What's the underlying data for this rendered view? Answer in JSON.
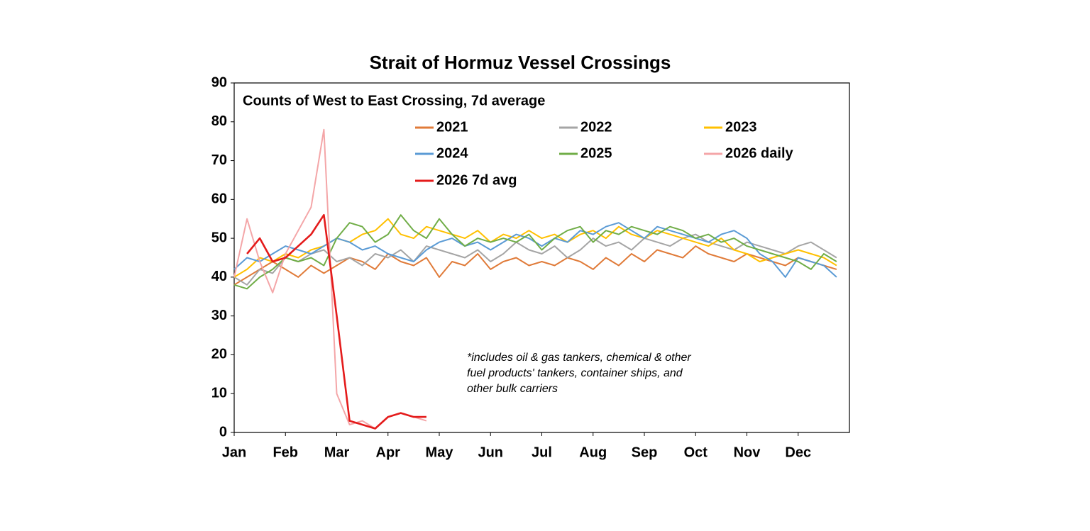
{
  "chart_data": {
    "type": "line",
    "title": "Strait of Hormuz Vessel Crossings",
    "subtitle": "Counts of West to East Crossing, 7d average",
    "annotation": [
      "*includes oil & gas tankers, chemical & other",
      "fuel products' tankers, container ships, and",
      "other bulk carriers"
    ],
    "categories": [
      "Jan",
      null,
      null,
      null,
      "Feb",
      null,
      null,
      null,
      "Mar",
      null,
      null,
      null,
      "Apr",
      null,
      null,
      null,
      "May",
      null,
      null,
      null,
      "Jun",
      null,
      null,
      null,
      "Jul",
      null,
      null,
      null,
      "Aug",
      null,
      null,
      null,
      "Sep",
      null,
      null,
      null,
      "Oct",
      null,
      null,
      null,
      "Nov",
      null,
      null,
      null,
      "Dec",
      null,
      null,
      null
    ],
    "ylim": [
      0,
      90
    ],
    "yticks": [
      0,
      10,
      20,
      30,
      40,
      50,
      60,
      70,
      80,
      90
    ],
    "series": [
      {
        "name": "2021",
        "color": "#e07b39",
        "values": [
          38,
          40,
          42,
          44,
          42,
          40,
          43,
          41,
          43,
          45,
          44,
          42,
          46,
          44,
          43,
          45,
          40,
          44,
          43,
          46,
          42,
          44,
          45,
          43,
          44,
          43,
          45,
          44,
          42,
          45,
          43,
          46,
          44,
          47,
          46,
          45,
          48,
          46,
          45,
          44,
          46,
          45,
          44,
          43,
          45,
          44,
          43,
          42
        ]
      },
      {
        "name": "2022",
        "color": "#a5a5a5",
        "values": [
          40,
          38,
          42,
          41,
          45,
          44,
          46,
          47,
          44,
          45,
          43,
          46,
          45,
          47,
          44,
          48,
          47,
          46,
          45,
          47,
          44,
          46,
          49,
          47,
          46,
          48,
          45,
          47,
          50,
          48,
          49,
          47,
          50,
          49,
          48,
          50,
          51,
          49,
          48,
          47,
          49,
          48,
          47,
          46,
          48,
          49,
          47,
          45
        ]
      },
      {
        "name": "2023",
        "color": "#ffc000",
        "values": [
          40,
          42,
          45,
          44,
          46,
          45,
          47,
          48,
          50,
          49,
          51,
          52,
          55,
          51,
          50,
          53,
          52,
          51,
          50,
          52,
          49,
          51,
          50,
          52,
          50,
          51,
          49,
          51,
          52,
          50,
          53,
          51,
          50,
          52,
          51,
          50,
          49,
          48,
          50,
          47,
          46,
          44,
          45,
          46,
          47,
          46,
          45,
          43
        ]
      },
      {
        "name": "2024",
        "color": "#5b9bd5",
        "values": [
          42,
          45,
          44,
          46,
          48,
          47,
          46,
          48,
          50,
          49,
          47,
          48,
          46,
          45,
          44,
          47,
          49,
          50,
          48,
          49,
          47,
          49,
          51,
          50,
          48,
          50,
          49,
          52,
          51,
          53,
          54,
          52,
          50,
          53,
          52,
          51,
          50,
          49,
          51,
          52,
          50,
          46,
          44,
          40,
          45,
          44,
          43,
          40
        ]
      },
      {
        "name": "2025",
        "color": "#70ad47",
        "values": [
          38,
          37,
          40,
          42,
          45,
          44,
          45,
          43,
          50,
          54,
          53,
          49,
          51,
          56,
          52,
          50,
          55,
          51,
          48,
          50,
          49,
          50,
          49,
          51,
          47,
          50,
          52,
          53,
          49,
          52,
          51,
          53,
          52,
          51,
          53,
          52,
          50,
          51,
          49,
          50,
          48,
          47,
          46,
          45,
          44,
          42,
          46,
          44
        ]
      },
      {
        "name": "2026 daily",
        "color": "#f4a6a8",
        "values": [
          40,
          55,
          44,
          36,
          46,
          52,
          58,
          78,
          10,
          2,
          3,
          1,
          4,
          5,
          4,
          3,
          null,
          null,
          null,
          null,
          null,
          null,
          null,
          null,
          null,
          null,
          null,
          null,
          null,
          null,
          null,
          null,
          null,
          null,
          null,
          null,
          null,
          null,
          null,
          null,
          null,
          null,
          null,
          null,
          null,
          null,
          null,
          null
        ]
      },
      {
        "name": "2026 7d avg",
        "color": "#e41b1b",
        "values": [
          null,
          46,
          50,
          44,
          45,
          48,
          51,
          56,
          30,
          3,
          2,
          1,
          4,
          5,
          4,
          4,
          null,
          null,
          null,
          null,
          null,
          null,
          null,
          null,
          null,
          null,
          null,
          null,
          null,
          null,
          null,
          null,
          null,
          null,
          null,
          null,
          null,
          null,
          null,
          null,
          null,
          null,
          null,
          null,
          null,
          null,
          null,
          null
        ]
      }
    ]
  }
}
